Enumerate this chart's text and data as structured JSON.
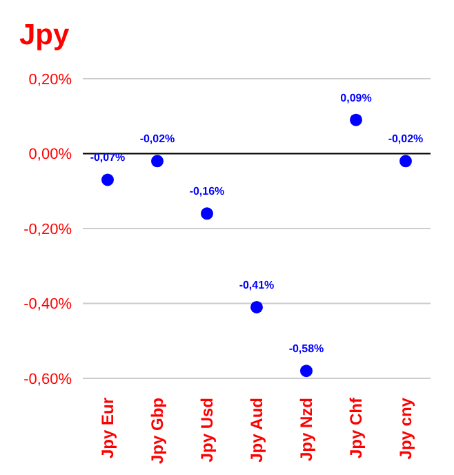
{
  "chart_data": {
    "type": "scatter",
    "title": "Jpy",
    "categories": [
      "Jpy Eur",
      "Jpy Gbp",
      "Jpy Usd",
      "Jpy Aud",
      "Jpy Nzd",
      "Jpy Chf",
      "Jpy cny"
    ],
    "values": [
      -0.07,
      -0.02,
      -0.16,
      -0.41,
      -0.58,
      0.09,
      -0.02
    ],
    "value_labels": [
      "-0,07%",
      "-0,02%",
      "-0,16%",
      "-0,41%",
      "-0,58%",
      "0,09%",
      "-0,02%"
    ],
    "color": "#0000ff",
    "marker": "circle",
    "ylim": [
      -0.6,
      0.2
    ],
    "yticks": [
      {
        "value": -0.6,
        "label": "-0,60%"
      },
      {
        "value": -0.4,
        "label": "-0,40%"
      },
      {
        "value": -0.2,
        "label": "-0,20%"
      },
      {
        "value": 0,
        "label": "0,00%"
      },
      {
        "value": 0.2,
        "label": "0,20%"
      }
    ],
    "ref_lines": [
      {
        "axis": "y",
        "value": 0,
        "color": "#000000"
      }
    ],
    "grid": "y",
    "legend": false
  }
}
